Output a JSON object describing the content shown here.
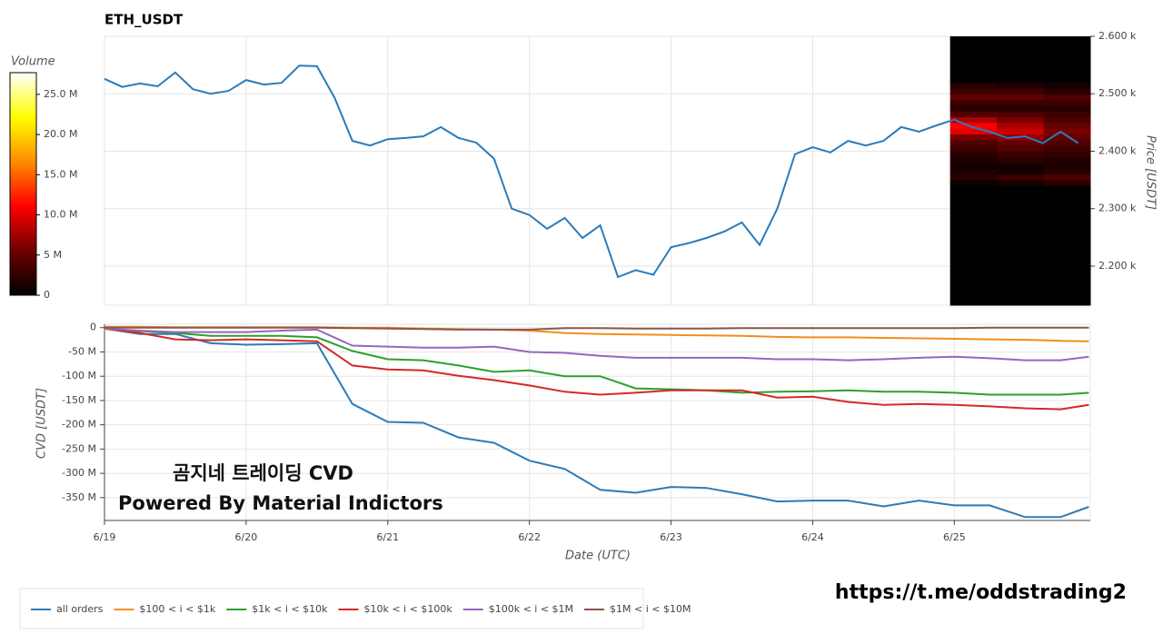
{
  "chart_data": [
    {
      "type": "line",
      "title": "ETH_USDT",
      "y_label": "Price [USDT]",
      "y_axis_side": "right",
      "grid": true,
      "xlim": [
        0,
        6.96
      ],
      "ylim": [
        2132,
        2600
      ],
      "yticks": [
        {
          "value": 2200,
          "label": "2.200 k"
        },
        {
          "value": 2300,
          "label": "2.300 k"
        },
        {
          "value": 2400,
          "label": "2.400 k"
        },
        {
          "value": 2500,
          "label": "2.500 k"
        },
        {
          "value": 2600,
          "label": "2.600 k"
        }
      ],
      "x": [
        0,
        0.125,
        0.25,
        0.375,
        0.5,
        0.625,
        0.75,
        0.875,
        1,
        1.125,
        1.25,
        1.375,
        1.5,
        1.625,
        1.75,
        1.875,
        2,
        2.125,
        2.25,
        2.375,
        2.5,
        2.625,
        2.75,
        2.875,
        3,
        3.125,
        3.25,
        3.375,
        3.5,
        3.625,
        3.75,
        3.875,
        4,
        4.125,
        4.25,
        4.375,
        4.5,
        4.625,
        4.75,
        4.875,
        5,
        5.125,
        5.25,
        5.375,
        5.5,
        5.625,
        5.75,
        5.875,
        6,
        6.125,
        6.25,
        6.375,
        6.5,
        6.625,
        6.75,
        6.875
      ],
      "series": [
        {
          "name": "price",
          "color": "#2b7bb9",
          "values": [
            2526,
            2512,
            2518,
            2513,
            2537,
            2508,
            2500,
            2505,
            2524,
            2516,
            2519,
            2549,
            2548,
            2493,
            2418,
            2410,
            2421,
            2423,
            2426,
            2442,
            2423,
            2415,
            2387,
            2300,
            2289,
            2265,
            2284,
            2249,
            2271,
            2181,
            2193,
            2185,
            2233,
            2240,
            2249,
            2260,
            2276,
            2237,
            2300,
            2395,
            2407,
            2398,
            2418,
            2410,
            2418,
            2442,
            2434,
            2445,
            2455,
            2442,
            2434,
            2423,
            2426,
            2414,
            2434,
            2414
          ]
        }
      ],
      "heatmap": {
        "x_edges": [
          5.97,
          6.3,
          6.63,
          6.96
        ],
        "price_edges": [
          2132,
          2340,
          2350,
          2360,
          2370,
          2380,
          2390,
          2400,
          2410,
          2420,
          2430,
          2440,
          2450,
          2460,
          2470,
          2480,
          2490,
          2500,
          2510,
          2520,
          2600
        ],
        "volumes": [
          [
            0,
            0,
            0
          ],
          [
            500000,
            1000000,
            2000000
          ],
          [
            2000000,
            3000000,
            4000000
          ],
          [
            1500000,
            1000000,
            2000000
          ],
          [
            1000000,
            1000000,
            1500000
          ],
          [
            1500000,
            2000000,
            1500000
          ],
          [
            2000000,
            3000000,
            2500000
          ],
          [
            3000000,
            4000000,
            3000000
          ],
          [
            4000000,
            5000000,
            4000000
          ],
          [
            6000000,
            7000000,
            5000000
          ],
          [
            10000000,
            9000000,
            6000000
          ],
          [
            11000000,
            8000000,
            5000000
          ],
          [
            8000000,
            6000000,
            4000000
          ],
          [
            4000000,
            4000000,
            3000000
          ],
          [
            2000000,
            2000000,
            2000000
          ],
          [
            3000000,
            3000000,
            3000000
          ],
          [
            5000000,
            5000000,
            4000000
          ],
          [
            3000000,
            3000000,
            2000000
          ],
          [
            2000000,
            1500000,
            1000000
          ],
          [
            0,
            0,
            0
          ]
        ]
      }
    },
    {
      "type": "line",
      "x_label": "Date (UTC)",
      "y_label": "CVD [USDT]",
      "y_axis_side": "left",
      "grid": true,
      "legend": "bottom-left",
      "xlim": [
        0,
        6.96
      ],
      "ylim": [
        -397000000,
        7000000
      ],
      "xticks": [
        {
          "value": 0,
          "label": "6/19"
        },
        {
          "value": 1,
          "label": "6/20"
        },
        {
          "value": 2,
          "label": "6/21"
        },
        {
          "value": 3,
          "label": "6/22"
        },
        {
          "value": 4,
          "label": "6/23"
        },
        {
          "value": 5,
          "label": "6/24"
        },
        {
          "value": 6,
          "label": "6/25"
        }
      ],
      "yticks": [
        {
          "value": 0,
          "label": "0"
        },
        {
          "value": -50000000,
          "label": "-50 M"
        },
        {
          "value": -100000000,
          "label": "-100 M"
        },
        {
          "value": -150000000,
          "label": "-150 M"
        },
        {
          "value": -200000000,
          "label": "-200 M"
        },
        {
          "value": -250000000,
          "label": "-250 M"
        },
        {
          "value": -300000000,
          "label": "-300 M"
        },
        {
          "value": -350000000,
          "label": "-350 M"
        }
      ],
      "x": [
        0,
        0.25,
        0.5,
        0.75,
        1,
        1.25,
        1.5,
        1.75,
        2,
        2.25,
        2.5,
        2.75,
        3,
        3.25,
        3.5,
        3.75,
        4,
        4.25,
        4.5,
        4.75,
        5,
        5.25,
        5.5,
        5.75,
        6,
        6.25,
        6.5,
        6.75,
        6.95
      ],
      "series": [
        {
          "name": "all orders",
          "color": "#2b7bb9",
          "values": [
            -2000000,
            -13000000,
            -13000000,
            -32000000,
            -35000000,
            -34000000,
            -32000000,
            -157000000,
            -194000000,
            -196000000,
            -226000000,
            -237000000,
            -274000000,
            -291000000,
            -334000000,
            -340000000,
            -328000000,
            -330000000,
            -343000000,
            -358000000,
            -356000000,
            -356000000,
            -368000000,
            -356000000,
            -366000000,
            -366000000,
            -390000000,
            -390000000,
            -369000000
          ]
        },
        {
          "name": "$100 < i < $1k",
          "color": "#f28e1e",
          "values": [
            2000000,
            2000000,
            1000000,
            1000000,
            1000000,
            1000000,
            1000000,
            0,
            0,
            -2000000,
            -3000000,
            -4000000,
            -6000000,
            -11000000,
            -13000000,
            -14000000,
            -15000000,
            -16000000,
            -17000000,
            -19000000,
            -20000000,
            -20000000,
            -21000000,
            -22000000,
            -23000000,
            -24000000,
            -25000000,
            -27000000,
            -28000000
          ]
        },
        {
          "name": "$1k < i < $10k",
          "color": "#2ca02c",
          "values": [
            -2000000,
            -7000000,
            -11000000,
            -17000000,
            -17000000,
            -17000000,
            -20000000,
            -48000000,
            -65000000,
            -67000000,
            -78000000,
            -91000000,
            -88000000,
            -100000000,
            -100000000,
            -125000000,
            -127000000,
            -129000000,
            -134000000,
            -132000000,
            -131000000,
            -129000000,
            -132000000,
            -132000000,
            -134000000,
            -138000000,
            -138000000,
            -138000000,
            -134000000
          ]
        },
        {
          "name": "$10k < i < $100k",
          "color": "#d62728",
          "values": [
            -2000000,
            -11000000,
            -24000000,
            -26000000,
            -24000000,
            -26000000,
            -28000000,
            -78000000,
            -86000000,
            -88000000,
            -99000000,
            -108000000,
            -119000000,
            -132000000,
            -138000000,
            -134000000,
            -129000000,
            -129000000,
            -129000000,
            -144000000,
            -142000000,
            -153000000,
            -159000000,
            -157000000,
            -159000000,
            -162000000,
            -166000000,
            -168000000,
            -159000000
          ]
        },
        {
          "name": "$100k < i < $1M",
          "color": "#9467bd",
          "values": [
            -2000000,
            -6000000,
            -9000000,
            -9000000,
            -9000000,
            -6000000,
            -4000000,
            -37000000,
            -39000000,
            -41000000,
            -41000000,
            -39000000,
            -50000000,
            -52000000,
            -58000000,
            -62000000,
            -62000000,
            -62000000,
            -62000000,
            -65000000,
            -65000000,
            -67000000,
            -65000000,
            -62000000,
            -60000000,
            -63000000,
            -67000000,
            -67000000,
            -60000000
          ]
        },
        {
          "name": "$1M < i < $10M",
          "color": "#8c564b",
          "values": [
            0,
            0,
            0,
            0,
            0,
            0,
            0,
            -1000000,
            -2000000,
            -3000000,
            -4000000,
            -4000000,
            -4000000,
            -1000000,
            -1000000,
            -2000000,
            -2000000,
            -2000000,
            -1000000,
            -1000000,
            -1000000,
            -1000000,
            -1000000,
            -1000000,
            -1000000,
            0,
            0,
            0,
            0
          ]
        }
      ]
    }
  ],
  "colorbar": {
    "title": "Volume",
    "lim": [
      0,
      27700000
    ],
    "colormap": [
      "#000000",
      "#6e0000",
      "#ff0000",
      "#ff8c00",
      "#ffff00",
      "#ffffff"
    ],
    "ticks": [
      {
        "value": 0,
        "label": "0"
      },
      {
        "value": 5000000,
        "label": "5 M"
      },
      {
        "value": 10000000,
        "label": "10.0 M"
      },
      {
        "value": 15000000,
        "label": "15.0 M"
      },
      {
        "value": 20000000,
        "label": "20.0 M"
      },
      {
        "value": 25000000,
        "label": "25.0 M"
      }
    ]
  },
  "watermark": {
    "line1": "곰지네 트레이딩 CVD",
    "line2": "Powered By Material Indictors"
  },
  "link": "https://t.me/oddstrading2"
}
